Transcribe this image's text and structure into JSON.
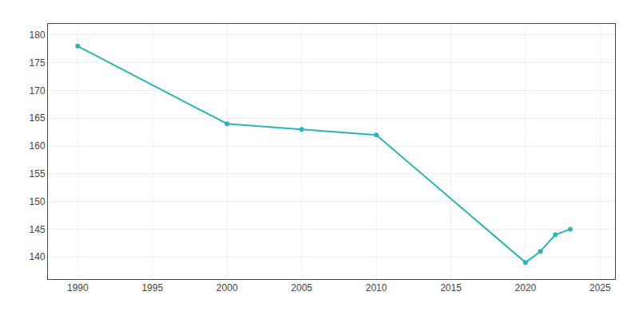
{
  "chart_data": {
    "type": "line",
    "x": [
      1990,
      2000,
      2005,
      2010,
      2020,
      2021,
      2022,
      2023
    ],
    "values": [
      178,
      164,
      163,
      162,
      139,
      141,
      144,
      145
    ],
    "color": "#2ab5b5",
    "marker": "circle",
    "xlim": [
      1988,
      2026
    ],
    "ylim": [
      136,
      182
    ],
    "xticks": [
      1990,
      1995,
      2000,
      2005,
      2010,
      2015,
      2020,
      2025
    ],
    "yticks": [
      140,
      145,
      150,
      155,
      160,
      165,
      170,
      175,
      180
    ],
    "grid": true
  }
}
